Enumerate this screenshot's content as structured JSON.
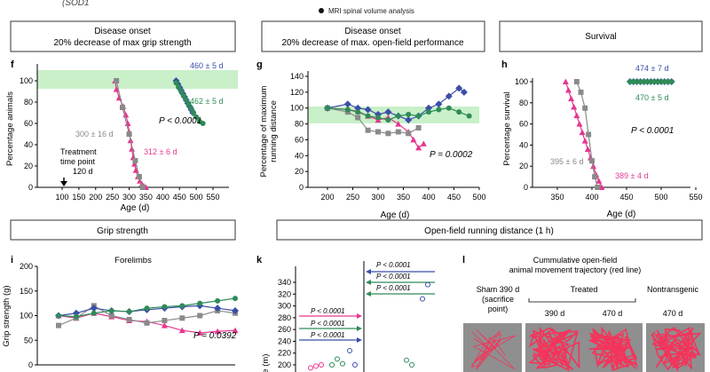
{
  "top": {
    "genotype_text": "(SOD1",
    "legend_mri": "MRI spinal volume analysis"
  },
  "colors": {
    "magenta": "#e6368f",
    "grey": "#8a8a8a",
    "blue": "#3a4ea8",
    "green": "#2e8b57",
    "band": "#c9f0c9"
  },
  "headers": {
    "h1": "Disease onset",
    "h1b": "20% decrease of max grip strength",
    "h2": "Disease onset",
    "h2b": "20% decrease of max. open-field performance",
    "h3": "Survival",
    "h4": "Grip strength",
    "h5": "Open-field running distance (1 h)"
  },
  "panel_letters": {
    "f": "f",
    "g": "g",
    "h": "h",
    "i": "i",
    "k": "k",
    "l": "l"
  },
  "f": {
    "ylabel": "Percentage animals",
    "xlabel": "Age (d)",
    "yticks": [
      "0",
      "20",
      "40",
      "60",
      "80",
      "100"
    ],
    "xticks": [
      "100",
      "150",
      "200",
      "250",
      "300",
      "350",
      "400",
      "450",
      "500",
      "550"
    ],
    "label_blue": "460 ± 5 d",
    "label_green": "462 ± 5 d",
    "label_grey": "300 ± 16 d",
    "label_magenta": "312 ± 6 d",
    "pvalue": "P < 0.0001",
    "treat1": "Treatment",
    "treat2": "time point",
    "treat3": "120 d"
  },
  "g": {
    "ylabel1": "Percentage of maximum",
    "ylabel2": "running distance",
    "xlabel": "Age (d)",
    "yticks": [
      "0",
      "20",
      "40",
      "60",
      "80",
      "100",
      "120",
      "140"
    ],
    "xticks": [
      "200",
      "250",
      "300",
      "350",
      "400",
      "450",
      "500"
    ],
    "pvalue": "P = 0.0002"
  },
  "h": {
    "ylabel": "Percentage survival",
    "xlabel": "Age (d)",
    "yticks": [
      "0",
      "20",
      "40",
      "60",
      "80",
      "100"
    ],
    "xticks": [
      "350",
      "400",
      "450",
      "500",
      "550"
    ],
    "label_blue": "474 ± 7 d",
    "label_green": "470 ± 5 d",
    "label_grey": "395 ± 6 d",
    "label_magenta": "389 ± 4 d",
    "pvalue": "P < 0.0001"
  },
  "i": {
    "title": "Forelimbs",
    "ylabel": "Grip strength (g)",
    "yticks": [
      "0",
      "50",
      "100",
      "150",
      "200"
    ],
    "pvalue": "P = 0.0392"
  },
  "k": {
    "ylabel": "ce (m)",
    "yticks": [
      "200",
      "220",
      "240",
      "260",
      "280",
      "300",
      "320",
      "340"
    ],
    "p1": "P < 0.0001",
    "p2": "P < 0.0001",
    "p3": "P < 0.0001",
    "p4": "P < 0.0001",
    "p5": "P < 0.0001",
    "p6": "P < 0.0001"
  },
  "l": {
    "title1": "Cummulative open-field",
    "title2": "animal movement trajectory (red line)",
    "sham1": "Sham 390 d",
    "sham2": "(sacrifice",
    "sham3": "point)",
    "treated": "Treated",
    "t390": "390 d",
    "t470": "470 d",
    "nontrans": "Nontransgenic",
    "n470": "470 d"
  },
  "chart_data": [
    {
      "id": "f",
      "type": "line",
      "title": "Disease onset 20% decrease of max grip strength",
      "xlabel": "Age (d)",
      "ylabel": "Percentage animals",
      "xlim": [
        100,
        550
      ],
      "ylim": [
        0,
        100
      ],
      "series": [
        {
          "name": "magenta",
          "x": [
            258,
            262,
            270,
            282,
            290,
            296,
            300,
            304,
            308,
            312,
            316,
            320,
            326,
            332,
            338,
            344,
            350
          ],
          "y": [
            100,
            92,
            84,
            76,
            68,
            60,
            52,
            44,
            36,
            28,
            22,
            16,
            10,
            6,
            3,
            1,
            0
          ]
        },
        {
          "name": "grey",
          "x": [
            262,
            280,
            300,
            318,
            330,
            340
          ],
          "y": [
            100,
            75,
            50,
            25,
            10,
            0
          ]
        },
        {
          "name": "blue",
          "x": [
            440,
            445,
            450,
            455,
            460,
            465,
            470,
            475,
            480,
            485,
            490
          ],
          "y": [
            100,
            97,
            94,
            91,
            88,
            85,
            82,
            79,
            76,
            73,
            70
          ]
        },
        {
          "name": "green",
          "x": [
            440,
            447,
            455,
            462,
            470,
            477,
            485,
            492,
            500,
            510,
            520
          ],
          "y": [
            98,
            94,
            90,
            86,
            82,
            78,
            74,
            70,
            66,
            62,
            60
          ]
        }
      ]
    },
    {
      "id": "g",
      "type": "line",
      "title": "Disease onset 20% decrease of max. open-field performance",
      "xlabel": "Age (d)",
      "ylabel": "Percentage of maximum running distance",
      "xlim": [
        200,
        500
      ],
      "ylim": [
        0,
        140
      ],
      "series": [
        {
          "name": "magenta",
          "x": [
            200,
            240,
            260,
            280,
            300,
            320,
            340,
            360,
            370,
            380,
            390
          ],
          "y": [
            100,
            98,
            96,
            90,
            85,
            88,
            80,
            70,
            60,
            50,
            55
          ]
        },
        {
          "name": "grey",
          "x": [
            200,
            240,
            260,
            280,
            300,
            320,
            340,
            360,
            380
          ],
          "y": [
            100,
            95,
            88,
            72,
            70,
            68,
            70,
            68,
            75
          ]
        },
        {
          "name": "blue",
          "x": [
            200,
            240,
            260,
            280,
            300,
            320,
            340,
            360,
            380,
            400,
            420,
            440,
            460,
            470
          ],
          "y": [
            100,
            105,
            100,
            98,
            92,
            95,
            90,
            85,
            90,
            100,
            105,
            115,
            125,
            120
          ]
        },
        {
          "name": "green",
          "x": [
            200,
            240,
            260,
            280,
            300,
            320,
            340,
            360,
            380,
            400,
            420,
            440,
            460,
            480
          ],
          "y": [
            100,
            98,
            95,
            90,
            88,
            85,
            90,
            92,
            90,
            95,
            98,
            100,
            95,
            90
          ]
        }
      ]
    },
    {
      "id": "h",
      "type": "line",
      "title": "Survival",
      "xlabel": "Age (d)",
      "ylabel": "Percentage survival",
      "xlim": [
        350,
        550
      ],
      "ylim": [
        0,
        100
      ],
      "series": [
        {
          "name": "magenta",
          "x": [
            362,
            366,
            370,
            374,
            378,
            382,
            386,
            390,
            394,
            398,
            402,
            406,
            410,
            414
          ],
          "y": [
            100,
            92,
            84,
            76,
            68,
            60,
            52,
            44,
            36,
            28,
            20,
            12,
            6,
            0
          ]
        },
        {
          "name": "grey",
          "x": [
            378,
            384,
            390,
            395,
            400,
            404,
            408
          ],
          "y": [
            100,
            90,
            75,
            50,
            25,
            10,
            0
          ]
        },
        {
          "name": "blue",
          "x": [
            455,
            460,
            465,
            470,
            475,
            480,
            485,
            490,
            495,
            500,
            505,
            510,
            515
          ],
          "y": [
            100,
            100,
            100,
            100,
            100,
            100,
            100,
            100,
            100,
            100,
            100,
            100,
            100
          ]
        },
        {
          "name": "green",
          "x": [
            455,
            460,
            465,
            470,
            475,
            480,
            485,
            490,
            495,
            500,
            505,
            510,
            515
          ],
          "y": [
            100,
            100,
            100,
            100,
            100,
            100,
            100,
            100,
            100,
            100,
            100,
            100,
            100
          ]
        }
      ]
    },
    {
      "id": "i",
      "type": "line",
      "title": "Forelimbs",
      "xlabel": "",
      "ylabel": "Grip strength (g)",
      "xlim": [
        0,
        10
      ],
      "ylim": [
        0,
        200
      ],
      "series": [
        {
          "name": "magenta",
          "x": [
            0,
            1,
            2,
            3,
            4,
            5,
            6,
            7,
            8,
            9,
            10
          ],
          "y": [
            100,
            95,
            105,
            98,
            90,
            88,
            80,
            70,
            65,
            68,
            70
          ]
        },
        {
          "name": "grey",
          "x": [
            0,
            1,
            2,
            3,
            4,
            5,
            6,
            7,
            8,
            9,
            10
          ],
          "y": [
            80,
            95,
            120,
            100,
            92,
            85,
            90,
            95,
            100,
            110,
            105
          ]
        },
        {
          "name": "blue",
          "x": [
            0,
            1,
            2,
            3,
            4,
            5,
            6,
            7,
            8,
            9,
            10
          ],
          "y": [
            100,
            105,
            115,
            110,
            108,
            112,
            115,
            118,
            120,
            115,
            110
          ]
        },
        {
          "name": "green",
          "x": [
            0,
            1,
            2,
            3,
            4,
            5,
            6,
            7,
            8,
            9,
            10
          ],
          "y": [
            100,
            98,
            105,
            110,
            108,
            115,
            118,
            120,
            125,
            130,
            135
          ]
        }
      ]
    },
    {
      "id": "k",
      "type": "scatter",
      "title": "Open-field running distance (1 h)",
      "xlabel": "",
      "ylabel": "Distance (m)",
      "ylim": [
        190,
        340
      ],
      "series": [
        {
          "name": "magenta",
          "x": [
            1,
            2,
            3
          ],
          "y": [
            195,
            198,
            200
          ]
        },
        {
          "name": "green",
          "x": [
            1,
            2,
            3
          ],
          "y": [
            200,
            210,
            202
          ]
        },
        {
          "name": "blue",
          "x": [
            1,
            2
          ],
          "y": [
            224,
            200
          ]
        },
        {
          "name": "blue_right",
          "x": [
            1,
            2
          ],
          "y": [
            312,
            336
          ]
        },
        {
          "name": "green_right",
          "x": [
            1,
            2
          ],
          "y": [
            208,
            200
          ]
        }
      ]
    }
  ]
}
